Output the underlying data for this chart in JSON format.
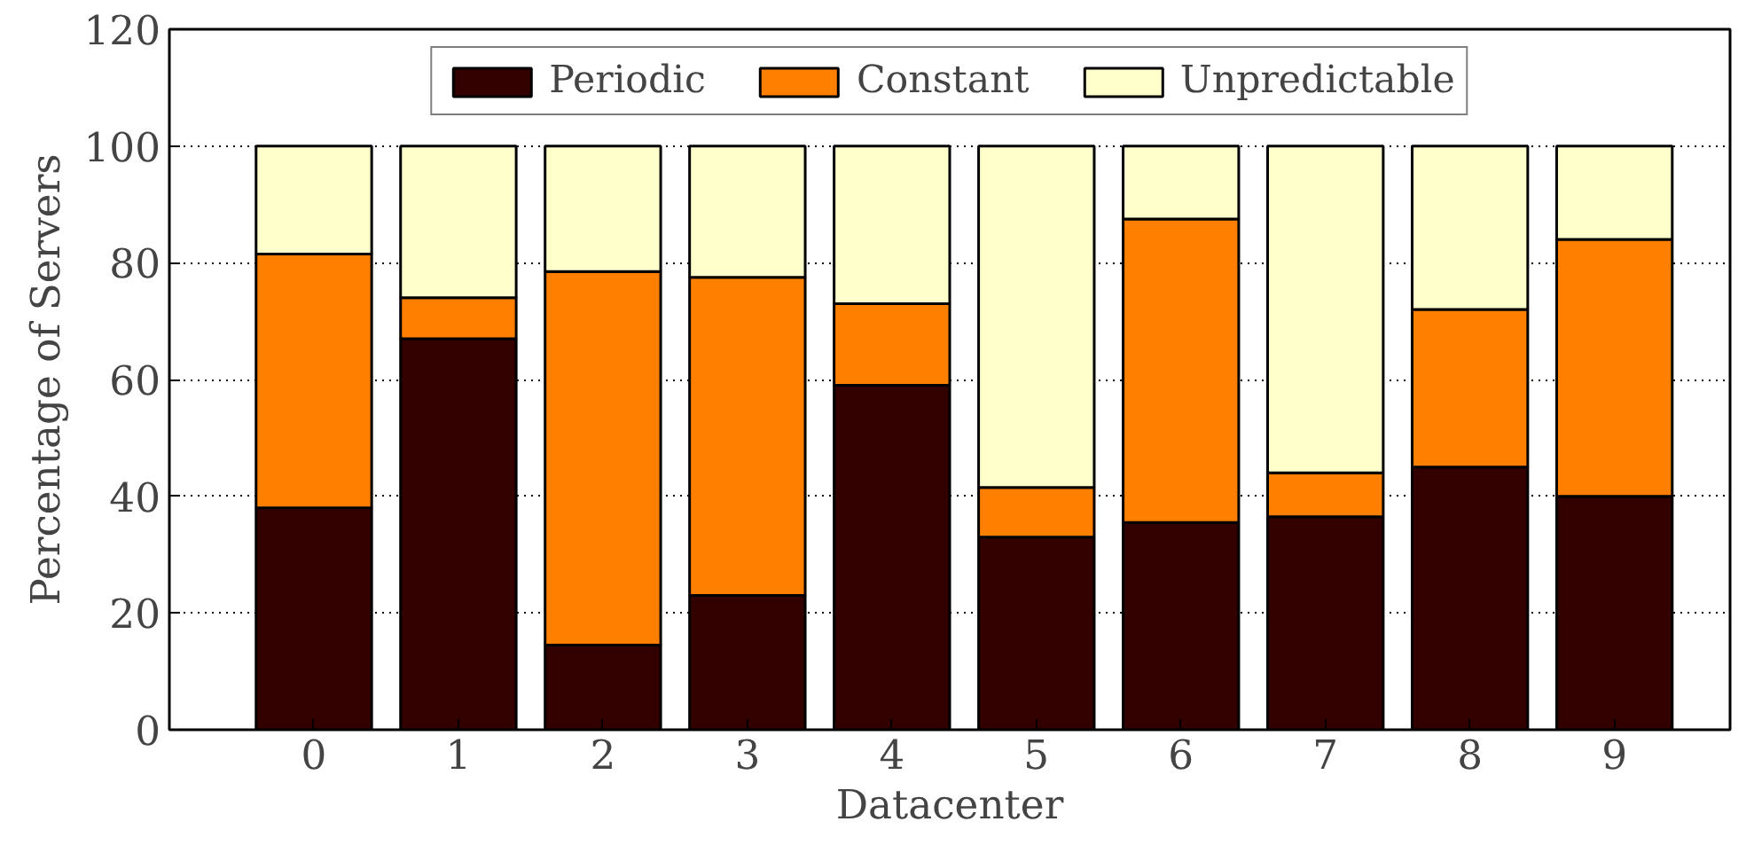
{
  "chart_data": {
    "type": "bar",
    "stacked": true,
    "xlabel": "Datacenter",
    "ylabel": "Percentage of Servers",
    "categories": [
      "0",
      "1",
      "2",
      "3",
      "4",
      "5",
      "6",
      "7",
      "8",
      "9"
    ],
    "series": [
      {
        "name": "Periodic",
        "color": "#330000",
        "values": [
          38,
          67,
          14.5,
          23,
          59,
          33,
          35.5,
          36.5,
          45,
          40
        ]
      },
      {
        "name": "Constant",
        "color": "#ff8000",
        "values": [
          43.5,
          7,
          64,
          54.5,
          14,
          8.5,
          52,
          7.5,
          27,
          44
        ]
      },
      {
        "name": "Unpredictable",
        "color": "#ffffcc",
        "values": [
          18.5,
          26,
          21.5,
          22.5,
          27,
          58.5,
          12.5,
          56,
          28,
          16
        ]
      }
    ],
    "ylim": [
      0,
      120
    ],
    "yticks": [
      0,
      20,
      40,
      60,
      80,
      100,
      120
    ],
    "grid": "y",
    "legend": "top"
  }
}
